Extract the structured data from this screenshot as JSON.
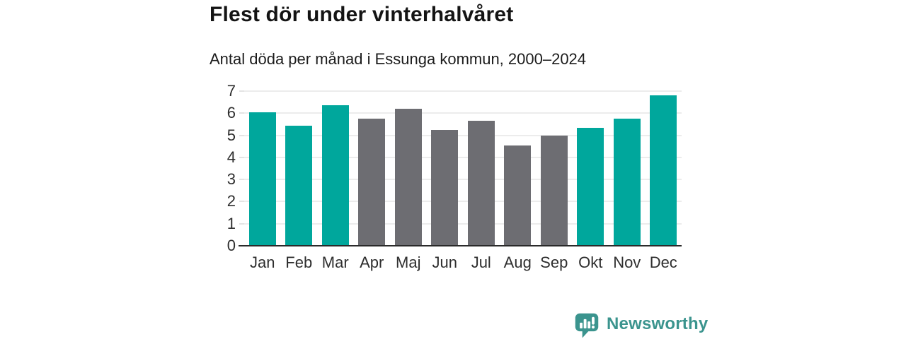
{
  "header": {
    "title": "Flest dör under vinterhalvåret",
    "subtitle": "Antal döda per månad i Essunga kommun, 2000–2024"
  },
  "chart_data": {
    "type": "bar",
    "title": "Flest dör under vinterhalvåret",
    "subtitle": "Antal döda per månad i Essunga kommun, 2000–2024",
    "categories": [
      "Jan",
      "Feb",
      "Mar",
      "Apr",
      "Maj",
      "Jun",
      "Jul",
      "Aug",
      "Sep",
      "Okt",
      "Nov",
      "Dec"
    ],
    "values": [
      6.05,
      5.45,
      6.35,
      5.75,
      6.2,
      5.25,
      5.65,
      4.55,
      5.0,
      5.35,
      5.75,
      6.8
    ],
    "highlighted": [
      true,
      true,
      true,
      false,
      false,
      false,
      false,
      false,
      false,
      true,
      true,
      true
    ],
    "xlabel": "",
    "ylabel": "",
    "ylim": [
      0,
      7
    ],
    "yticks": [
      0,
      1,
      2,
      3,
      4,
      5,
      6,
      7
    ],
    "grid": true,
    "legend": false,
    "colors": {
      "highlight": "#00a79c",
      "muted": "#6d6d72",
      "gridline": "#ececec",
      "axis": "#2a2a2a",
      "tick_label": "#2e2e2e"
    }
  },
  "branding": {
    "name": "Newsworthy",
    "color": "#3b948e",
    "icon": "bar-chart-speech-bubble-icon"
  }
}
